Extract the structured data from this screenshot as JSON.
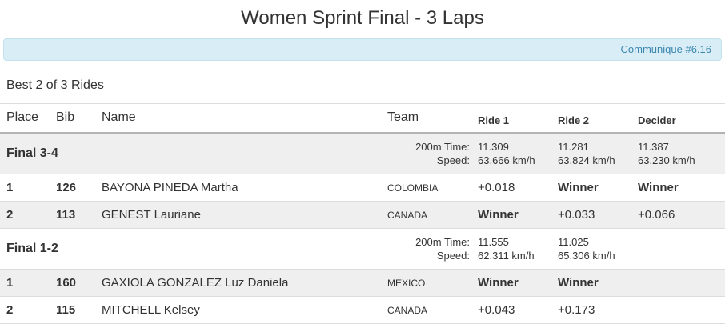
{
  "page": {
    "title": "Women Sprint Final - 3 Laps",
    "communique": "Communique #6.16",
    "subtitle": "Best 2 of 3 Rides"
  },
  "styles": {
    "accent_bar_bg": "#d9edf7",
    "accent_bar_text": "#3a87ad",
    "stripe_color": "#efefef",
    "winner_bold_value": "Winner"
  },
  "table": {
    "headers": {
      "place": "Place",
      "bib": "Bib",
      "name": "Name",
      "team": "Team",
      "ride1": "Ride 1",
      "ride2": "Ride 2",
      "decider": "Decider"
    },
    "stats_labels": {
      "time": "200m Time:",
      "speed": "Speed:"
    },
    "sections": [
      {
        "label": "Final 3-4",
        "stats": {
          "ride1": {
            "time": "11.309",
            "speed": "63.666 km/h"
          },
          "ride2": {
            "time": "11.281",
            "speed": "63.824 km/h"
          },
          "decider": {
            "time": "11.387",
            "speed": "63.230 km/h"
          }
        },
        "rows": [
          {
            "place": "1",
            "bib": "126",
            "name": "BAYONA PINEDA Martha",
            "team": "COLOMBIA",
            "ride1": "+0.018",
            "ride2": "Winner",
            "decider": "Winner"
          },
          {
            "place": "2",
            "bib": "113",
            "name": "GENEST Lauriane",
            "team": "CANADA",
            "ride1": "Winner",
            "ride2": "+0.033",
            "decider": "+0.066"
          }
        ]
      },
      {
        "label": "Final 1-2",
        "stats": {
          "ride1": {
            "time": "11.555",
            "speed": "62.311 km/h"
          },
          "ride2": {
            "time": "11.025",
            "speed": "65.306 km/h"
          },
          "decider": {
            "time": "",
            "speed": ""
          }
        },
        "rows": [
          {
            "place": "1",
            "bib": "160",
            "name": "GAXIOLA GONZALEZ Luz Daniela",
            "team": "MEXICO",
            "ride1": "Winner",
            "ride2": "Winner",
            "decider": ""
          },
          {
            "place": "2",
            "bib": "115",
            "name": "MITCHELL Kelsey",
            "team": "CANADA",
            "ride1": "+0.043",
            "ride2": "+0.173",
            "decider": ""
          }
        ]
      }
    ]
  }
}
